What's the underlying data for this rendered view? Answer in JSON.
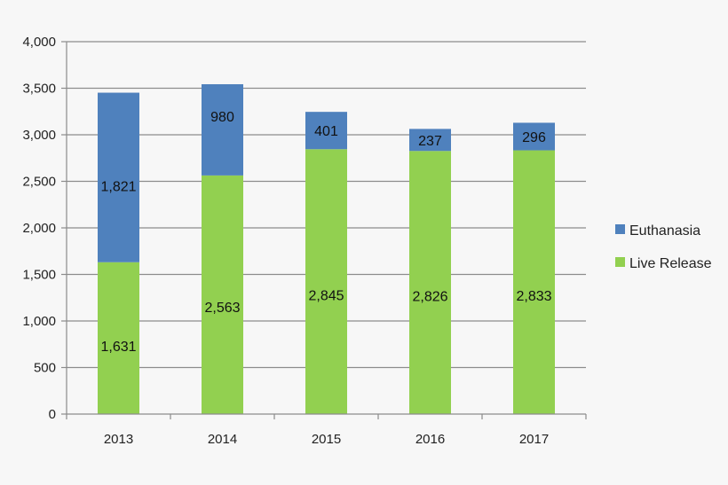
{
  "chart_data": {
    "type": "bar",
    "stacked": true,
    "categories": [
      "2013",
      "2014",
      "2015",
      "2016",
      "2017"
    ],
    "series": [
      {
        "name": "Live Release",
        "color": "#92d050",
        "values": [
          1631,
          2563,
          2845,
          2826,
          2833
        ],
        "labels": [
          "1,631",
          "2,563",
          "2,845",
          "2,826",
          "2,833"
        ]
      },
      {
        "name": "Euthanasia",
        "color": "#4f81bd",
        "values": [
          1821,
          980,
          401,
          237,
          296
        ],
        "labels": [
          "1,821",
          "980",
          "401",
          "237",
          "296"
        ]
      }
    ],
    "ylim": [
      0,
      4000
    ],
    "yticks": [
      0,
      500,
      1000,
      1500,
      2000,
      2500,
      3000,
      3500,
      4000
    ],
    "ytick_labels": [
      "0",
      "500",
      "1,000",
      "1,500",
      "2,000",
      "2,500",
      "3,000",
      "3,500",
      "4,000"
    ],
    "grid": true,
    "legend": {
      "position": "right",
      "entries": [
        "Euthanasia",
        "Live Release"
      ]
    },
    "title": "",
    "xlabel": "",
    "ylabel": ""
  }
}
